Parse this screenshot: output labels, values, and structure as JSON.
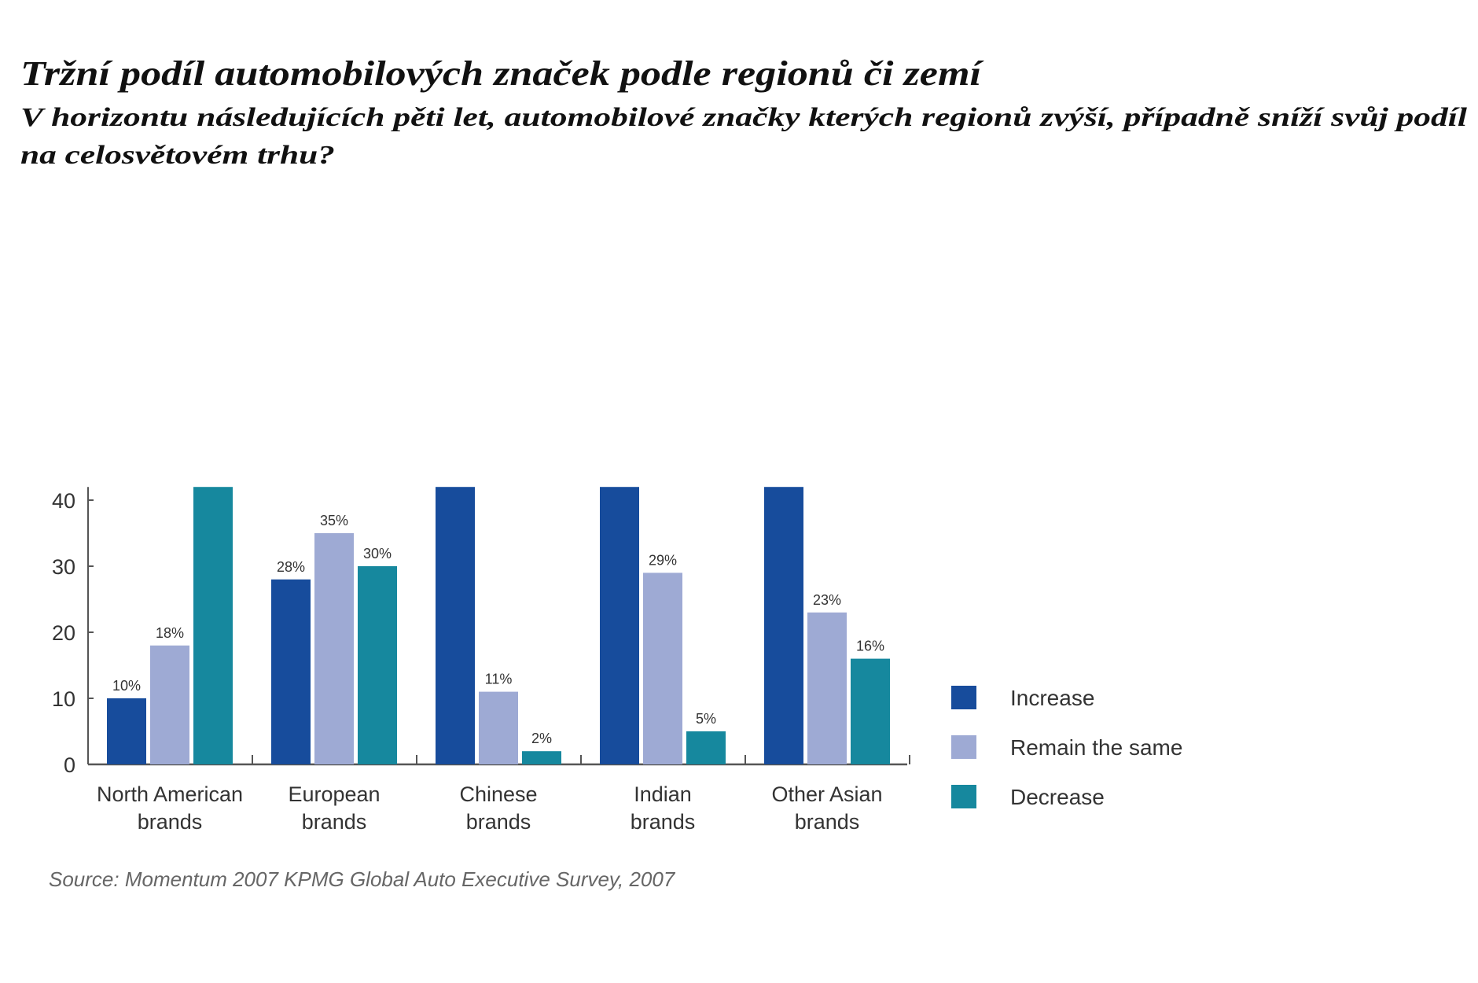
{
  "title": "Tržní podíl automobilových značek podle regionů či zemí",
  "subtitle_line1": "V horizontu následujících pěti let, automobilové značky kterých regionů zvýší, případně sníží svůj podíl",
  "subtitle_line2": "na celosvětovém trhu?",
  "source": "Source: Momentum 2007 KPMG Global Auto Executive Survey, 2007",
  "chart_data": {
    "type": "bar",
    "categories": [
      [
        "North American",
        "brands"
      ],
      [
        "European",
        "brands"
      ],
      [
        "Chinese",
        "brands"
      ],
      [
        "Indian",
        "brands"
      ],
      [
        "Other Asian",
        "brands"
      ]
    ],
    "series": [
      {
        "name": "Increase",
        "color": "#174c9c",
        "values": [
          10,
          28,
          null,
          null,
          null
        ],
        "labels": [
          "10%",
          "28%",
          "",
          "",
          ""
        ]
      },
      {
        "name": "Remain the same",
        "color": "#9eaad4",
        "values": [
          18,
          35,
          11,
          29,
          23
        ],
        "labels": [
          "18%",
          "35%",
          "11%",
          "29%",
          "23%"
        ]
      },
      {
        "name": "Decrease",
        "color": "#16889e",
        "values": [
          null,
          30,
          2,
          5,
          16
        ],
        "labels": [
          "",
          "30%",
          "2%",
          "5%",
          "16%"
        ]
      }
    ],
    "note_on_null": "bar extends beyond top of axis, value not printed",
    "yticks": [
      0,
      10,
      20,
      30,
      40
    ],
    "ylim": [
      0,
      42
    ],
    "xlabel": "",
    "ylabel": "",
    "grid": false,
    "legend_position": "right"
  }
}
